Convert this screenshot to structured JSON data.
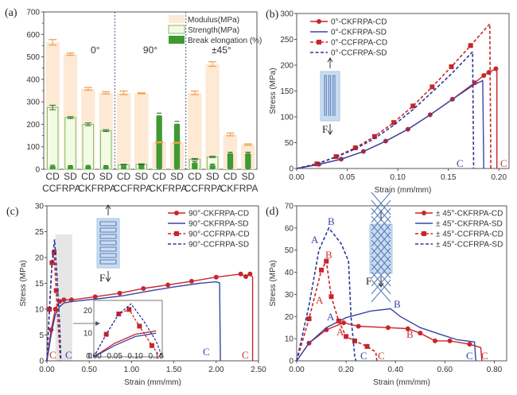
{
  "chart_data": [
    {
      "id": "a",
      "type": "bar",
      "panel_label": "(a)",
      "title": "",
      "xlabel": "",
      "ylabel": "",
      "ylim": [
        0,
        700
      ],
      "yticks": [
        "0",
        "100",
        "200",
        "300",
        "400",
        "500",
        "600",
        "700"
      ],
      "categories": [
        "CD",
        "SD",
        "CD",
        "SD",
        "CD",
        "SD",
        "CD",
        "SD",
        "CD",
        "SD",
        "CD",
        "SD"
      ],
      "group_labels": [
        "CCFRPA",
        "CKFRPA",
        "CCFRPA",
        "CKFRPA",
        "CCFRPA",
        "CKFRPA"
      ],
      "section_labels": [
        "0°",
        "90°",
        "±45°"
      ],
      "legend": [
        "Modulus(MPa)",
        "Strength(MPa)",
        "Break elongation (%)"
      ],
      "legend_position": "top-right",
      "colors": {
        "modulus": "#fde9d4",
        "modulus_err": "#f0a050",
        "strength_fill": "#f4fbe4",
        "strength_edge": "#7cc06a",
        "elong": "#3f9a32",
        "divider": "#4a5a8a"
      },
      "series": [
        {
          "name": "Modulus(MPa)",
          "values": [
            565,
            512,
            358,
            340,
            340,
            338,
            120,
            118,
            340,
            468,
            155,
            110
          ],
          "errors": [
            12,
            5,
            6,
            5,
            8,
            2,
            2,
            2,
            8,
            10,
            6,
            3
          ]
        },
        {
          "name": "Strength(MPa)",
          "values": [
            275,
            230,
            200,
            172,
            20,
            22,
            0,
            0,
            45,
            55,
            0,
            0
          ],
          "errors": [
            10,
            4,
            6,
            4,
            2,
            2,
            0,
            0,
            3,
            3,
            0,
            0
          ]
        },
        {
          "name": "Break elongation (%)",
          "values": [
            15,
            14,
            15,
            14,
            15,
            20,
            240,
            203,
            30,
            20,
            72,
            72
          ],
          "errors": [
            3,
            2,
            2,
            2,
            5,
            3,
            10,
            10,
            4,
            3,
            4,
            4
          ]
        }
      ]
    },
    {
      "id": "b",
      "type": "line",
      "panel_label": "(b)",
      "xlabel": "Strain (mm/mm)",
      "ylabel": "Stress (MPa)",
      "xlim": [
        0,
        0.21
      ],
      "ylim": [
        0,
        300
      ],
      "xticks": [
        "0.00",
        "0.05",
        "0.10",
        "0.15",
        "0.20"
      ],
      "yticks": [
        "0",
        "50",
        "100",
        "150",
        "200",
        "250",
        "300"
      ],
      "legend_position": "top-left",
      "annotations": [
        {
          "text": "C",
          "color": "#3a44a8"
        },
        {
          "text": "C",
          "color": "#c8352e"
        },
        {
          "text": "F",
          "color": "#222"
        }
      ],
      "series": [
        {
          "name": "0°-CKFRPA-CD",
          "color": "#c8252a",
          "dash": false,
          "marker": true,
          "x": [
            0,
            0.022,
            0.044,
            0.066,
            0.088,
            0.11,
            0.132,
            0.154,
            0.176,
            0.185,
            0.19,
            0.197,
            0.198,
            0.198
          ],
          "y": [
            0,
            8,
            18,
            33,
            53,
            76,
            104,
            134,
            166,
            180,
            186,
            193,
            190,
            0
          ]
        },
        {
          "name": "0°-CKFRPA-SD",
          "color": "#3a44a8",
          "dash": false,
          "marker": false,
          "x": [
            0,
            0.022,
            0.044,
            0.066,
            0.088,
            0.11,
            0.132,
            0.154,
            0.176,
            0.184,
            0.185
          ],
          "y": [
            0,
            8,
            18,
            33,
            53,
            76,
            104,
            134,
            163,
            170,
            0
          ]
        },
        {
          "name": "0°-CCFRPA-CD",
          "color": "#c8252a",
          "dash": true,
          "marker": true,
          "x": [
            0,
            0.02,
            0.039,
            0.058,
            0.077,
            0.096,
            0.115,
            0.134,
            0.153,
            0.172,
            0.191,
            0.192
          ],
          "y": [
            0,
            9,
            23,
            40,
            62,
            89,
            121,
            158,
            197,
            238,
            280,
            0
          ]
        },
        {
          "name": "0°-CCFRPA-SD",
          "color": "#2a3898",
          "dash": true,
          "marker": false,
          "x": [
            0,
            0.02,
            0.039,
            0.058,
            0.077,
            0.096,
            0.115,
            0.134,
            0.153,
            0.174,
            0.175
          ],
          "y": [
            0,
            9,
            22,
            38,
            58,
            84,
            114,
            148,
            183,
            226,
            0
          ]
        }
      ]
    },
    {
      "id": "c",
      "type": "line",
      "panel_label": "(c)",
      "xlabel": "Strain (mm/mm)",
      "ylabel": "Stress (MPa)",
      "xlim": [
        0,
        2.5
      ],
      "ylim": [
        0,
        30
      ],
      "xticks": [
        "0.00",
        "0.50",
        "1.00",
        "1.50",
        "2.00",
        "2.50"
      ],
      "yticks": [
        "0",
        "5",
        "10",
        "15",
        "20",
        "25",
        "30"
      ],
      "legend_position": "top-right",
      "inset": {
        "xticks": [
          "0.00",
          "0.05",
          "0.10",
          "0.15"
        ],
        "yticks": [
          "0",
          "10",
          "20"
        ]
      },
      "annotations": [
        {
          "text": "C",
          "color": "#c8352e"
        },
        {
          "text": "C",
          "color": "#3a44a8"
        },
        {
          "text": "C",
          "color": "#3a44a8"
        },
        {
          "text": "C",
          "color": "#c8352e"
        },
        {
          "text": "F",
          "color": "#222"
        }
      ],
      "series": [
        {
          "name": "90°-CKFRPA-CD",
          "color": "#c8252a",
          "dash": false,
          "marker": true,
          "x": [
            0,
            0.05,
            0.1,
            0.15,
            0.2,
            0.29,
            0.57,
            0.86,
            1.14,
            1.43,
            1.71,
            2.0,
            2.29,
            2.35,
            2.4,
            2.43,
            2.43
          ],
          "y": [
            0,
            6,
            10,
            11.5,
            11.8,
            11.8,
            12.4,
            13.1,
            14.0,
            14.7,
            15.4,
            16.2,
            16.8,
            16.3,
            16.8,
            16.2,
            0
          ]
        },
        {
          "name": "90°-CKFRPA-SD",
          "color": "#3a44a8",
          "dash": false,
          "marker": false,
          "x": [
            0,
            0.05,
            0.1,
            0.15,
            0.2,
            0.3,
            0.6,
            0.9,
            1.2,
            1.5,
            1.8,
            2.0,
            2.04,
            2.05
          ],
          "y": [
            0,
            5,
            9,
            10.5,
            11.2,
            11.5,
            12.0,
            12.6,
            13.5,
            14.3,
            15.0,
            15.3,
            15.1,
            0
          ]
        },
        {
          "name": "90°-CCFRPA-CD",
          "color": "#c8252a",
          "dash": true,
          "marker": true,
          "x": [
            0,
            0.03,
            0.06,
            0.085,
            0.11,
            0.14,
            0.16
          ],
          "y": [
            0,
            10,
            19,
            21,
            13.6,
            5,
            0
          ]
        },
        {
          "name": "90°-CCFRPA-SD",
          "color": "#2a3898",
          "dash": true,
          "marker": false,
          "x": [
            0,
            0.03,
            0.06,
            0.09,
            0.12,
            0.15,
            0.165
          ],
          "y": [
            0,
            10,
            19,
            23.5,
            16,
            7,
            0
          ]
        }
      ]
    },
    {
      "id": "d",
      "type": "line",
      "panel_label": "(d)",
      "xlabel": "Strain (mm/mm)",
      "ylabel": "Stress (MPa)",
      "xlim": [
        0,
        0.85
      ],
      "ylim": [
        0,
        70
      ],
      "xticks": [
        "0.00",
        "0.20",
        "0.40",
        "0.60",
        "0.80"
      ],
      "yticks": [
        "0",
        "10",
        "20",
        "30",
        "40",
        "50",
        "60",
        "70"
      ],
      "legend_position": "top-right",
      "annotations": [
        {
          "text": "A",
          "color": "#3a44a8"
        },
        {
          "text": "B",
          "color": "#3a44a8"
        },
        {
          "text": "B",
          "color": "#c8352e"
        },
        {
          "text": "A",
          "color": "#c8352e"
        },
        {
          "text": "A",
          "color": "#3a44a8"
        },
        {
          "text": "B",
          "color": "#3a44a8"
        },
        {
          "text": "A",
          "color": "#c8352e"
        },
        {
          "text": "B",
          "color": "#c8352e"
        },
        {
          "text": "C",
          "color": "#3a44a8"
        },
        {
          "text": "C",
          "color": "#c8352e"
        },
        {
          "text": "C",
          "color": "#3a44a8"
        },
        {
          "text": "C",
          "color": "#c8352e"
        },
        {
          "text": "F",
          "color": "#222"
        }
      ],
      "series": [
        {
          "name": "± 45°-CKFRPA-CD",
          "color": "#c8252a",
          "dash": false,
          "marker": true,
          "x": [
            0,
            0.05,
            0.12,
            0.19,
            0.25,
            0.37,
            0.45,
            0.5,
            0.56,
            0.62,
            0.7,
            0.745,
            0.75
          ],
          "y": [
            0,
            8,
            14,
            17.2,
            15.6,
            15,
            14.5,
            12.5,
            9,
            9,
            7.5,
            6,
            0
          ]
        },
        {
          "name": "± 45°-CKFRPA-SD",
          "color": "#3a44a8",
          "dash": false,
          "marker": false,
          "x": [
            0,
            0.05,
            0.12,
            0.2,
            0.3,
            0.38,
            0.42,
            0.5,
            0.58,
            0.65,
            0.72,
            0.725
          ],
          "y": [
            0,
            8,
            15,
            19.5,
            22.5,
            23.5,
            20,
            15,
            12,
            9.5,
            8.5,
            0
          ]
        },
        {
          "name": "± 45°-CCFRPA-CD",
          "color": "#c8252a",
          "dash": true,
          "marker": true,
          "x": [
            0,
            0.05,
            0.1,
            0.12,
            0.14,
            0.17,
            0.2,
            0.235,
            0.285,
            0.32,
            0.325
          ],
          "y": [
            0,
            19,
            41,
            45,
            29,
            18,
            11,
            9,
            6.5,
            4,
            0
          ]
        },
        {
          "name": "± 45°-CCFRPA-SD",
          "color": "#2a3898",
          "dash": true,
          "marker": false,
          "x": [
            0,
            0.05,
            0.09,
            0.13,
            0.18,
            0.21,
            0.22,
            0.235,
            0.24
          ],
          "y": [
            0,
            25,
            50,
            60,
            53,
            45,
            20,
            2,
            0
          ]
        }
      ]
    }
  ]
}
